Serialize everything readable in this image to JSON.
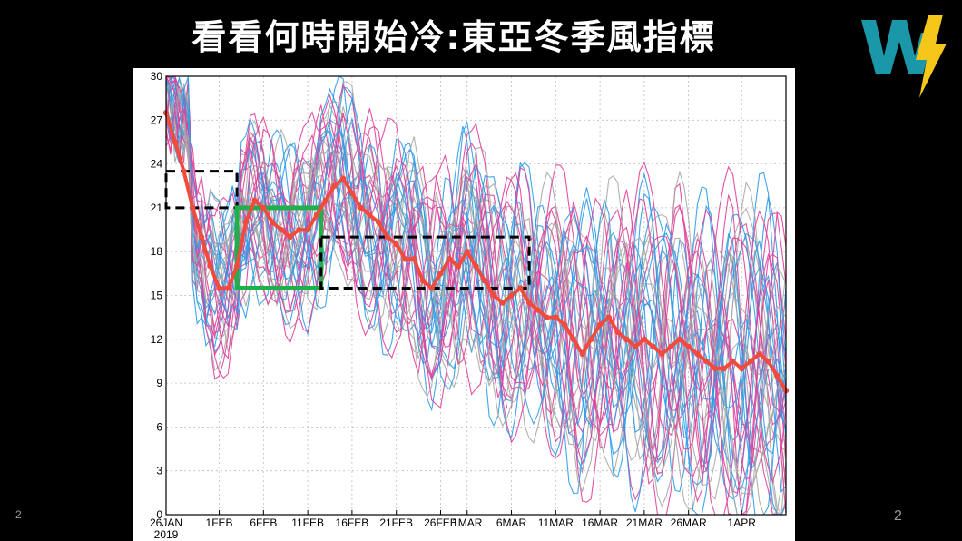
{
  "slide": {
    "title": "看看何時開始冷:東亞冬季風指標",
    "page_number_left": "2",
    "page_number_right": "2"
  },
  "colors": {
    "background": "#000000",
    "ensemble_blue": "#2f9be8",
    "ensemble_magenta": "#e0409a",
    "ensemble_gray": "#a8a8a8",
    "mean_red": "#f04b3c",
    "highlight_green": "#1fb04c",
    "logo_teal": "#1a97a8",
    "logo_yellow": "#f6c71b"
  },
  "chart_data": {
    "type": "line",
    "title": "",
    "xlabel": "",
    "ylabel": "",
    "ylim": [
      0,
      30
    ],
    "yticks": [
      0,
      3,
      6,
      9,
      12,
      15,
      18,
      21,
      24,
      27,
      30
    ],
    "xlim_days": [
      0,
      70
    ],
    "xtick_labels": [
      "26JAN",
      "1FEB",
      "6FEB",
      "11FEB",
      "16FEB",
      "21FEB",
      "26FEB",
      "1MAR",
      "6MAR",
      "11MAR",
      "16MAR",
      "21MAR",
      "26MAR",
      "1APR"
    ],
    "xtick_days": [
      0,
      6,
      11,
      16,
      21,
      26,
      31,
      34,
      39,
      44,
      49,
      54,
      59,
      65
    ],
    "year_label": "2019",
    "grid": true,
    "legend": "none",
    "series": [
      {
        "role": "ensemble-mean",
        "color": "#f04b3c",
        "x": [
          0,
          1,
          2,
          3,
          4,
          5,
          6,
          7,
          8,
          9,
          10,
          11,
          12,
          13,
          14,
          15,
          16,
          17,
          18,
          19,
          20,
          21,
          22,
          23,
          24,
          25,
          26,
          27,
          28,
          29,
          30,
          31,
          32,
          33,
          34,
          35,
          36,
          37,
          38,
          39,
          40,
          41,
          42,
          43,
          44,
          45,
          46,
          47,
          48,
          49,
          50,
          51,
          52,
          53,
          54,
          55,
          56,
          57,
          58,
          59,
          60,
          61,
          62,
          63,
          64,
          65,
          66,
          67,
          68,
          69,
          70
        ],
        "y": [
          27.5,
          25.5,
          23.5,
          21,
          19,
          17,
          15.5,
          15.5,
          17,
          20,
          21.5,
          21,
          20,
          19.5,
          19,
          19.5,
          19.5,
          20.5,
          21.5,
          22.5,
          23,
          22,
          21,
          20.5,
          20,
          19,
          18.5,
          17.5,
          17.5,
          16,
          15.5,
          16.5,
          17.5,
          17,
          18,
          17,
          16,
          15,
          14.5,
          15,
          15.5,
          14.5,
          14,
          13.5,
          13.5,
          13,
          12,
          11,
          12,
          13,
          13.5,
          12.5,
          12,
          11.5,
          12,
          11.5,
          11,
          11.5,
          12,
          11.5,
          11,
          10.5,
          10,
          10,
          10.5,
          10,
          10.5,
          11,
          10.5,
          9.5,
          8.5
        ]
      }
    ],
    "ensemble_members": {
      "count": 36,
      "colors": [
        "blue",
        "magenta",
        "gray"
      ],
      "values_note": "dense spaghetti of oscillating lines between 0 and 30"
    },
    "annotations": [
      {
        "type": "box",
        "style": "dashed-black",
        "x": [
          0,
          8
        ],
        "y": [
          21,
          23.5
        ]
      },
      {
        "type": "box",
        "style": "solid-green",
        "x": [
          8,
          17.5
        ],
        "y": [
          15.5,
          21
        ]
      },
      {
        "type": "box",
        "style": "dashed-black",
        "x": [
          17.5,
          41
        ],
        "y": [
          15.5,
          19
        ]
      }
    ]
  }
}
